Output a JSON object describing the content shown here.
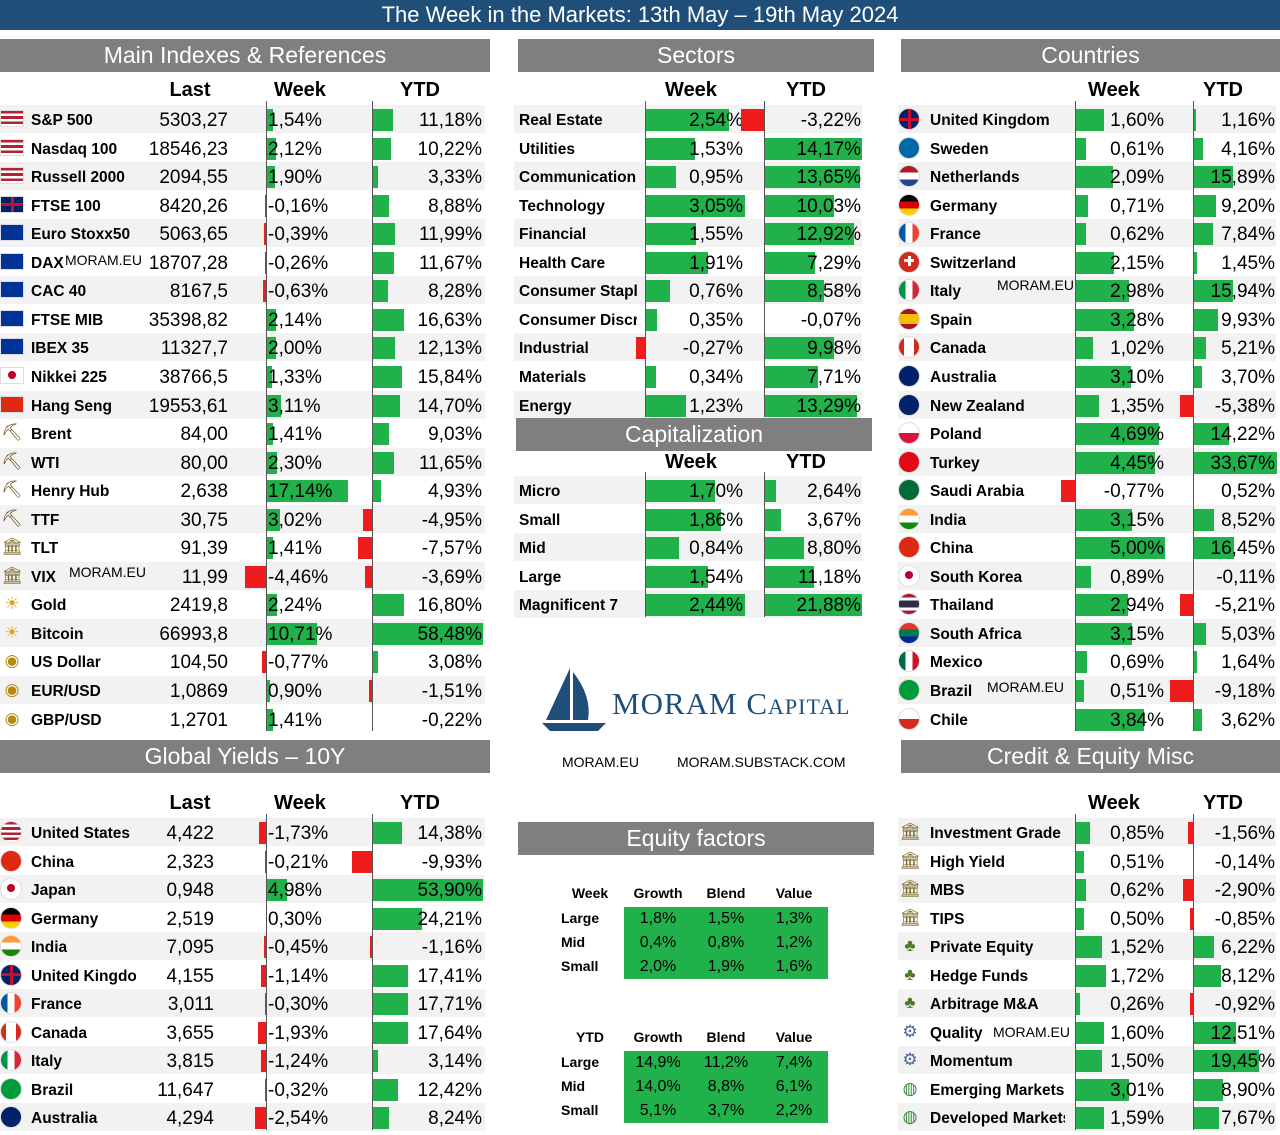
{
  "title": "The Week in the Markets: 13th May – 19th May 2024",
  "colors": {
    "title_bar": "#1f4e79",
    "header_bar": "#7f7f7f",
    "positive": "#21b14a",
    "negative": "#ee1c1c",
    "stripe": "#f2f2f2"
  },
  "watermark": "MORAM.EU",
  "logo": {
    "name": "MORAM Capital",
    "link1": "MORAM.EU",
    "link2": "MORAM.SUBSTACK.COM"
  },
  "chart_data": [
    {
      "type": "table",
      "title": "Main Indexes & References",
      "columns": [
        "Last",
        "Week",
        "YTD"
      ],
      "rows": [
        {
          "name": "S&P 500",
          "icon": "us-flag",
          "last": "5303,27",
          "week": 1.54,
          "ytd": 11.18
        },
        {
          "name": "Nasdaq 100",
          "icon": "us-flag",
          "last": "18546,23",
          "week": 2.12,
          "ytd": 10.22
        },
        {
          "name": "Russell 2000",
          "icon": "us-flag",
          "last": "2094,55",
          "week": 1.9,
          "ytd": 3.33
        },
        {
          "name": "FTSE 100",
          "icon": "uk-flag",
          "last": "8420,26",
          "week": -0.16,
          "ytd": 8.88
        },
        {
          "name": "Euro Stoxx50",
          "icon": "eu-flag",
          "last": "5063,65",
          "week": -0.39,
          "ytd": 11.99
        },
        {
          "name": "DAX",
          "icon": "eu-flag",
          "last": "18707,28",
          "week": -0.26,
          "ytd": 11.67
        },
        {
          "name": "CAC 40",
          "icon": "eu-flag",
          "last": "8167,5",
          "week": -0.63,
          "ytd": 8.28
        },
        {
          "name": "FTSE MIB",
          "icon": "eu-flag",
          "last": "35398,82",
          "week": 2.14,
          "ytd": 16.63
        },
        {
          "name": "IBEX 35",
          "icon": "eu-flag",
          "last": "11327,7",
          "week": 2.0,
          "ytd": 12.13
        },
        {
          "name": "Nikkei 225",
          "icon": "jp-flag",
          "last": "38766,5",
          "week": 1.33,
          "ytd": 15.84
        },
        {
          "name": "Hang Seng",
          "icon": "cn-flag",
          "last": "19553,61",
          "week": 3.11,
          "ytd": 14.7
        },
        {
          "name": "Brent",
          "icon": "oil-rig-icon",
          "last": "84,00",
          "week": 1.41,
          "ytd": 9.03
        },
        {
          "name": "WTI",
          "icon": "oil-rig-icon",
          "last": "80,00",
          "week": 2.3,
          "ytd": 11.65
        },
        {
          "name": "Henry Hub",
          "icon": "oil-rig-icon",
          "last": "2,638",
          "week": 17.14,
          "ytd": 4.93
        },
        {
          "name": "TTF",
          "icon": "oil-rig-icon",
          "last": "30,75",
          "week": 3.02,
          "ytd": -4.95
        },
        {
          "name": "TLT",
          "icon": "bank-icon",
          "last": "91,39",
          "week": 1.41,
          "ytd": -7.57
        },
        {
          "name": "VIX",
          "icon": "bank-icon",
          "last": "11,99",
          "week": -4.46,
          "ytd": -3.69
        },
        {
          "name": "Gold",
          "icon": "gold-icon",
          "last": "2419,8",
          "week": 2.24,
          "ytd": 16.8
        },
        {
          "name": "Bitcoin",
          "icon": "gold-icon",
          "last": "66993,8",
          "week": 10.71,
          "ytd": 58.48
        },
        {
          "name": "US Dollar",
          "icon": "coins-icon",
          "last": "104,50",
          "week": -0.77,
          "ytd": 3.08
        },
        {
          "name": "EUR/USD",
          "icon": "coins-icon",
          "last": "1,0869",
          "week": 0.9,
          "ytd": -1.51
        },
        {
          "name": "GBP/USD",
          "icon": "coins-icon",
          "last": "1,2701",
          "week": 1.41,
          "ytd": -0.22
        }
      ]
    },
    {
      "type": "table",
      "title": "Global Yields – 10Y",
      "columns": [
        "Last",
        "Week",
        "YTD"
      ],
      "rows": [
        {
          "name": "United States",
          "icon": "us-flag",
          "last": "4,422",
          "week": -1.73,
          "ytd": 14.38
        },
        {
          "name": "China",
          "icon": "cn-flag",
          "last": "2,323",
          "week": -0.21,
          "ytd": -9.93
        },
        {
          "name": "Japan",
          "icon": "jp-flag",
          "last": "0,948",
          "week": 4.98,
          "ytd": 53.9
        },
        {
          "name": "Germany",
          "icon": "de-flag",
          "last": "2,519",
          "week": 0.3,
          "ytd": 24.21
        },
        {
          "name": "India",
          "icon": "in-flag",
          "last": "7,095",
          "week": -0.45,
          "ytd": -1.16
        },
        {
          "name": "United Kingdom",
          "icon": "uk-flag",
          "last": "4,155",
          "week": -1.14,
          "ytd": 17.41
        },
        {
          "name": "France",
          "icon": "fr-flag",
          "last": "3,011",
          "week": -0.3,
          "ytd": 17.71
        },
        {
          "name": "Canada",
          "icon": "ca-flag",
          "last": "3,655",
          "week": -1.93,
          "ytd": 17.64
        },
        {
          "name": "Italy",
          "icon": "it-flag",
          "last": "3,815",
          "week": -1.24,
          "ytd": 3.14
        },
        {
          "name": "Brazil",
          "icon": "br-flag",
          "last": "11,647",
          "week": -0.32,
          "ytd": 12.42
        },
        {
          "name": "Australia",
          "icon": "au-flag",
          "last": "4,294",
          "week": -2.54,
          "ytd": 8.24
        }
      ]
    },
    {
      "type": "table",
      "title": "Sectors",
      "columns": [
        "Week",
        "YTD"
      ],
      "rows": [
        {
          "name": "Real Estate",
          "week": 2.54,
          "ytd": -3.22
        },
        {
          "name": "Utilities",
          "week": 1.53,
          "ytd": 14.17
        },
        {
          "name": "Communication",
          "week": 0.95,
          "ytd": 13.65
        },
        {
          "name": "Technology",
          "week": 3.05,
          "ytd": 10.03
        },
        {
          "name": "Financial",
          "week": 1.55,
          "ytd": 12.92
        },
        {
          "name": "Health Care",
          "week": 1.91,
          "ytd": 7.29
        },
        {
          "name": "Consumer Staples",
          "week": 0.76,
          "ytd": 8.58
        },
        {
          "name": "Consumer Discr",
          "week": 0.35,
          "ytd": -0.07
        },
        {
          "name": "Industrial",
          "week": -0.27,
          "ytd": 9.98
        },
        {
          "name": "Materials",
          "week": 0.34,
          "ytd": 7.71
        },
        {
          "name": "Energy",
          "week": 1.23,
          "ytd": 13.29
        }
      ]
    },
    {
      "type": "table",
      "title": "Capitalization",
      "columns": [
        "Week",
        "YTD"
      ],
      "rows": [
        {
          "name": "Micro",
          "week": 1.7,
          "ytd": 2.64
        },
        {
          "name": "Small",
          "week": 1.86,
          "ytd": 3.67
        },
        {
          "name": "Mid",
          "week": 0.84,
          "ytd": 8.8
        },
        {
          "name": "Large",
          "week": 1.54,
          "ytd": 11.18
        },
        {
          "name": "Magnificent 7",
          "week": 2.44,
          "ytd": 21.88
        }
      ]
    },
    {
      "type": "table",
      "title": "Countries",
      "columns": [
        "Week",
        "YTD"
      ],
      "rows": [
        {
          "name": "United Kingdom",
          "icon": "uk-flag",
          "week": 1.6,
          "ytd": 1.16
        },
        {
          "name": "Sweden",
          "icon": "se-flag",
          "week": 0.61,
          "ytd": 4.16
        },
        {
          "name": "Netherlands",
          "icon": "nl-flag",
          "week": 2.09,
          "ytd": 15.89
        },
        {
          "name": "Germany",
          "icon": "de-flag",
          "week": 0.71,
          "ytd": 9.2
        },
        {
          "name": "France",
          "icon": "fr-flag",
          "week": 0.62,
          "ytd": 7.84
        },
        {
          "name": "Switzerland",
          "icon": "ch-flag",
          "week": 2.15,
          "ytd": 1.45
        },
        {
          "name": "Italy",
          "icon": "it-flag",
          "week": 2.98,
          "ytd": 15.94
        },
        {
          "name": "Spain",
          "icon": "es-flag",
          "week": 3.28,
          "ytd": 9.93
        },
        {
          "name": "Canada",
          "icon": "ca-flag",
          "week": 1.02,
          "ytd": 5.21
        },
        {
          "name": "Australia",
          "icon": "au-flag",
          "week": 3.1,
          "ytd": 3.7
        },
        {
          "name": "New Zealand",
          "icon": "nz-flag",
          "week": 1.35,
          "ytd": -5.38
        },
        {
          "name": "Poland",
          "icon": "pl-flag",
          "week": 4.69,
          "ytd": 14.22
        },
        {
          "name": "Turkey",
          "icon": "tr-flag",
          "week": 4.45,
          "ytd": 33.67
        },
        {
          "name": "Saudi Arabia",
          "icon": "sa-flag",
          "week": -0.77,
          "ytd": 0.52
        },
        {
          "name": "India",
          "icon": "in-flag",
          "week": 3.15,
          "ytd": 8.52
        },
        {
          "name": "China",
          "icon": "cn-flag",
          "week": 5.0,
          "ytd": 16.45
        },
        {
          "name": "South Korea",
          "icon": "kr-flag",
          "week": 0.89,
          "ytd": -0.11
        },
        {
          "name": "Thailand",
          "icon": "th-flag",
          "week": 2.94,
          "ytd": -5.21
        },
        {
          "name": "South Africa",
          "icon": "za-flag",
          "week": 3.15,
          "ytd": 5.03
        },
        {
          "name": "Mexico",
          "icon": "mx-flag",
          "week": 0.69,
          "ytd": 1.64
        },
        {
          "name": "Brazil",
          "icon": "br-flag",
          "week": 0.51,
          "ytd": -9.18
        },
        {
          "name": "Chile",
          "icon": "cl-flag",
          "week": 3.84,
          "ytd": 3.62
        }
      ]
    },
    {
      "type": "table",
      "title": "Credit & Equity Misc",
      "columns": [
        "Week",
        "YTD"
      ],
      "rows": [
        {
          "name": "Investment Grade",
          "icon": "bank-icon",
          "week": 0.85,
          "ytd": -1.56
        },
        {
          "name": "High Yield",
          "icon": "bank-icon",
          "week": 0.51,
          "ytd": -0.14
        },
        {
          "name": "MBS",
          "icon": "bank-icon",
          "week": 0.62,
          "ytd": -2.9
        },
        {
          "name": "TIPS",
          "icon": "bank-icon",
          "week": 0.5,
          "ytd": -0.85
        },
        {
          "name": "Private Equity",
          "icon": "tree-icon",
          "week": 1.52,
          "ytd": 6.22
        },
        {
          "name": "Hedge Funds",
          "icon": "tree-icon",
          "week": 1.72,
          "ytd": 8.12
        },
        {
          "name": "Arbitrage M&A",
          "icon": "tree-icon",
          "week": 0.26,
          "ytd": -0.92
        },
        {
          "name": "Quality",
          "icon": "gears-icon",
          "week": 1.6,
          "ytd": 12.51
        },
        {
          "name": "Momentum",
          "icon": "gears-icon",
          "week": 1.5,
          "ytd": 19.45
        },
        {
          "name": "Emerging Markets",
          "icon": "globe-icon",
          "week": 3.01,
          "ytd": 8.9
        },
        {
          "name": "Developed Markets",
          "icon": "globe-icon",
          "week": 1.59,
          "ytd": 7.67
        }
      ]
    },
    {
      "type": "heatmap",
      "title": "Equity factors",
      "blocks": [
        {
          "label": "Week",
          "columns": [
            "Growth",
            "Blend",
            "Value"
          ],
          "rows": [
            "Large",
            "Mid",
            "Small"
          ],
          "values": [
            [
              "1,8%",
              "1,5%",
              "1,3%"
            ],
            [
              "0,4%",
              "0,8%",
              "1,2%"
            ],
            [
              "2,0%",
              "1,9%",
              "1,6%"
            ]
          ]
        },
        {
          "label": "YTD",
          "columns": [
            "Growth",
            "Blend",
            "Value"
          ],
          "rows": [
            "Large",
            "Mid",
            "Small"
          ],
          "values": [
            [
              "14,9%",
              "11,2%",
              "7,4%"
            ],
            [
              "14,0%",
              "8,8%",
              "6,1%"
            ],
            [
              "5,1%",
              "3,7%",
              "2,2%"
            ]
          ]
        }
      ]
    }
  ]
}
